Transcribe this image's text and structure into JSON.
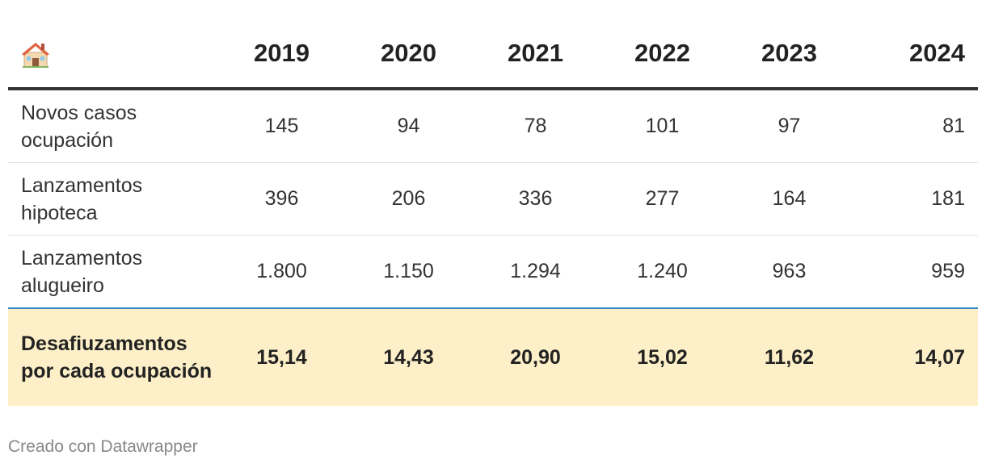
{
  "chart_data": {
    "type": "table",
    "header_icon": "house-icon",
    "columns": [
      "2019",
      "2020",
      "2021",
      "2022",
      "2023",
      "2024"
    ],
    "rows": [
      {
        "label": "Novos casos ocupación",
        "values": [
          "145",
          "94",
          "78",
          "101",
          "97",
          "81"
        ],
        "highlight": false
      },
      {
        "label": "Lanzamentos hipoteca",
        "values": [
          "396",
          "206",
          "336",
          "277",
          "164",
          "181"
        ],
        "highlight": false
      },
      {
        "label": "Lanzamentos alugueiro",
        "values": [
          "1.800",
          "1.150",
          "1.294",
          "1.240",
          "963",
          "959"
        ],
        "highlight": false
      },
      {
        "label": "Desafiuzamentos por cada ocupación",
        "values": [
          "15,14",
          "14,43",
          "20,90",
          "15,02",
          "11,62",
          "14,07"
        ],
        "highlight": true
      }
    ],
    "highlight_color": "#fdf0c8",
    "divider_color": "#2e86c9"
  },
  "footer": {
    "credit": "Creado con Datawrapper"
  }
}
